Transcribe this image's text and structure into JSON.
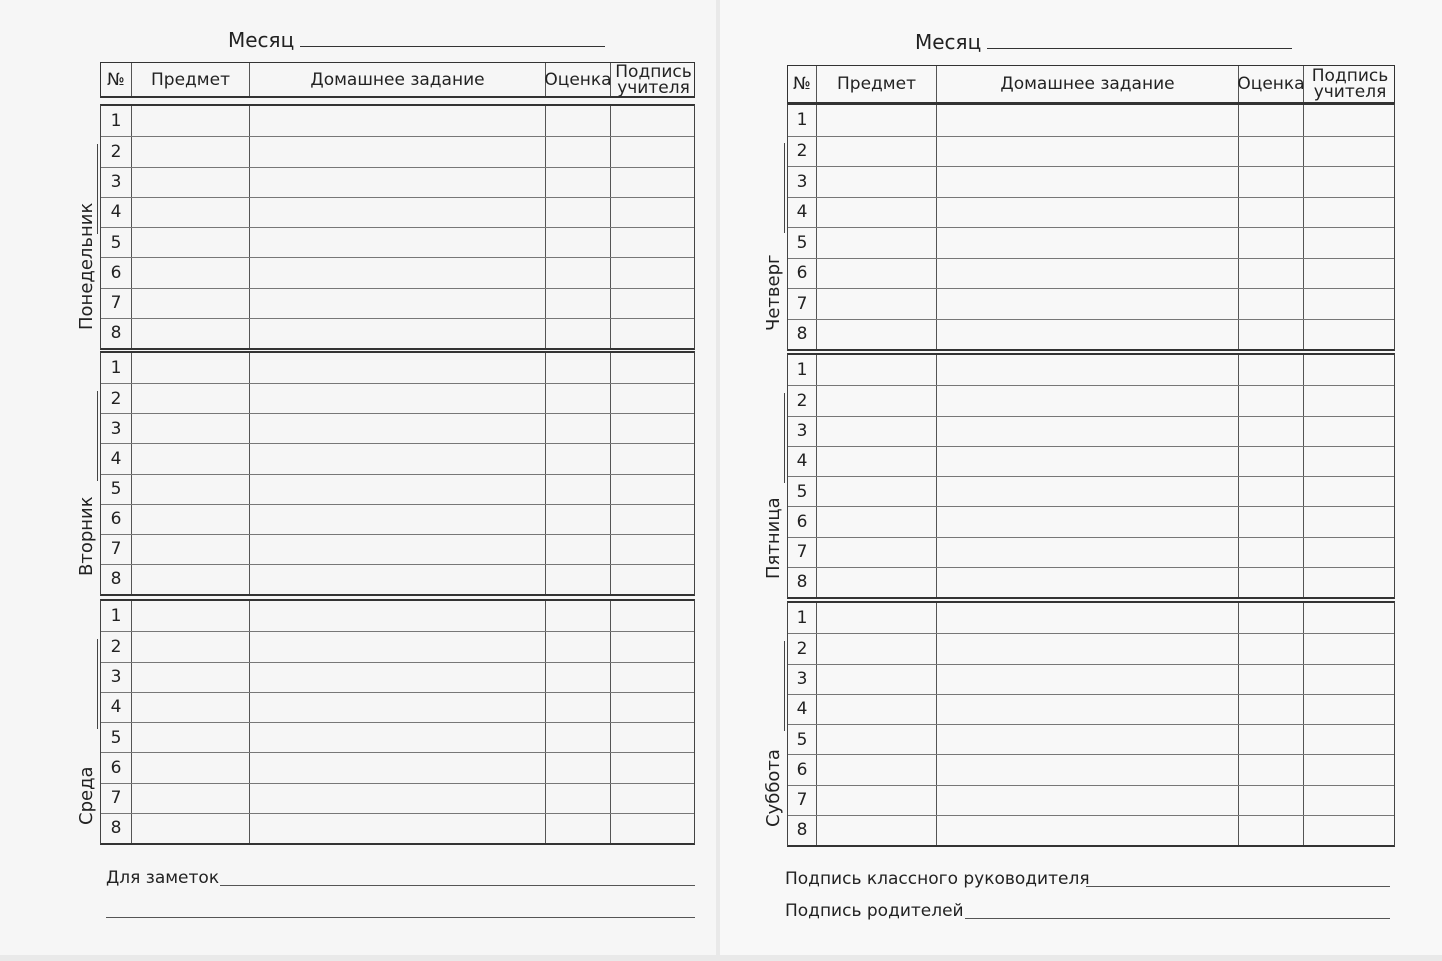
{
  "left_page": {
    "month_label": "Месяц",
    "headers": [
      "№",
      "Предмет",
      "Домашнее задание",
      "Оценка",
      "Подпись учителя"
    ],
    "days": [
      {
        "name": "Понедельник",
        "rows": [
          "1",
          "2",
          "3",
          "4",
          "5",
          "6",
          "7",
          "8"
        ]
      },
      {
        "name": "Вторник",
        "rows": [
          "1",
          "2",
          "3",
          "4",
          "5",
          "6",
          "7",
          "8"
        ]
      },
      {
        "name": "Среда",
        "rows": [
          "1",
          "2",
          "3",
          "4",
          "5",
          "6",
          "7",
          "8"
        ]
      }
    ],
    "notes_label": "Для заметок"
  },
  "right_page": {
    "month_label": "Месяц",
    "headers": [
      "№",
      "Предмет",
      "Домашнее задание",
      "Оценка",
      "Подпись учителя"
    ],
    "days": [
      {
        "name": "Четверг",
        "rows": [
          "1",
          "2",
          "3",
          "4",
          "5",
          "6",
          "7",
          "8"
        ]
      },
      {
        "name": "Пятница",
        "rows": [
          "1",
          "2",
          "3",
          "4",
          "5",
          "6",
          "7",
          "8"
        ]
      },
      {
        "name": "Суббота",
        "rows": [
          "1",
          "2",
          "3",
          "4",
          "5",
          "6",
          "7",
          "8"
        ]
      }
    ],
    "class_teacher_signature_label": "Подпись классного руководителя",
    "parents_signature_label": "Подпись родителей"
  }
}
